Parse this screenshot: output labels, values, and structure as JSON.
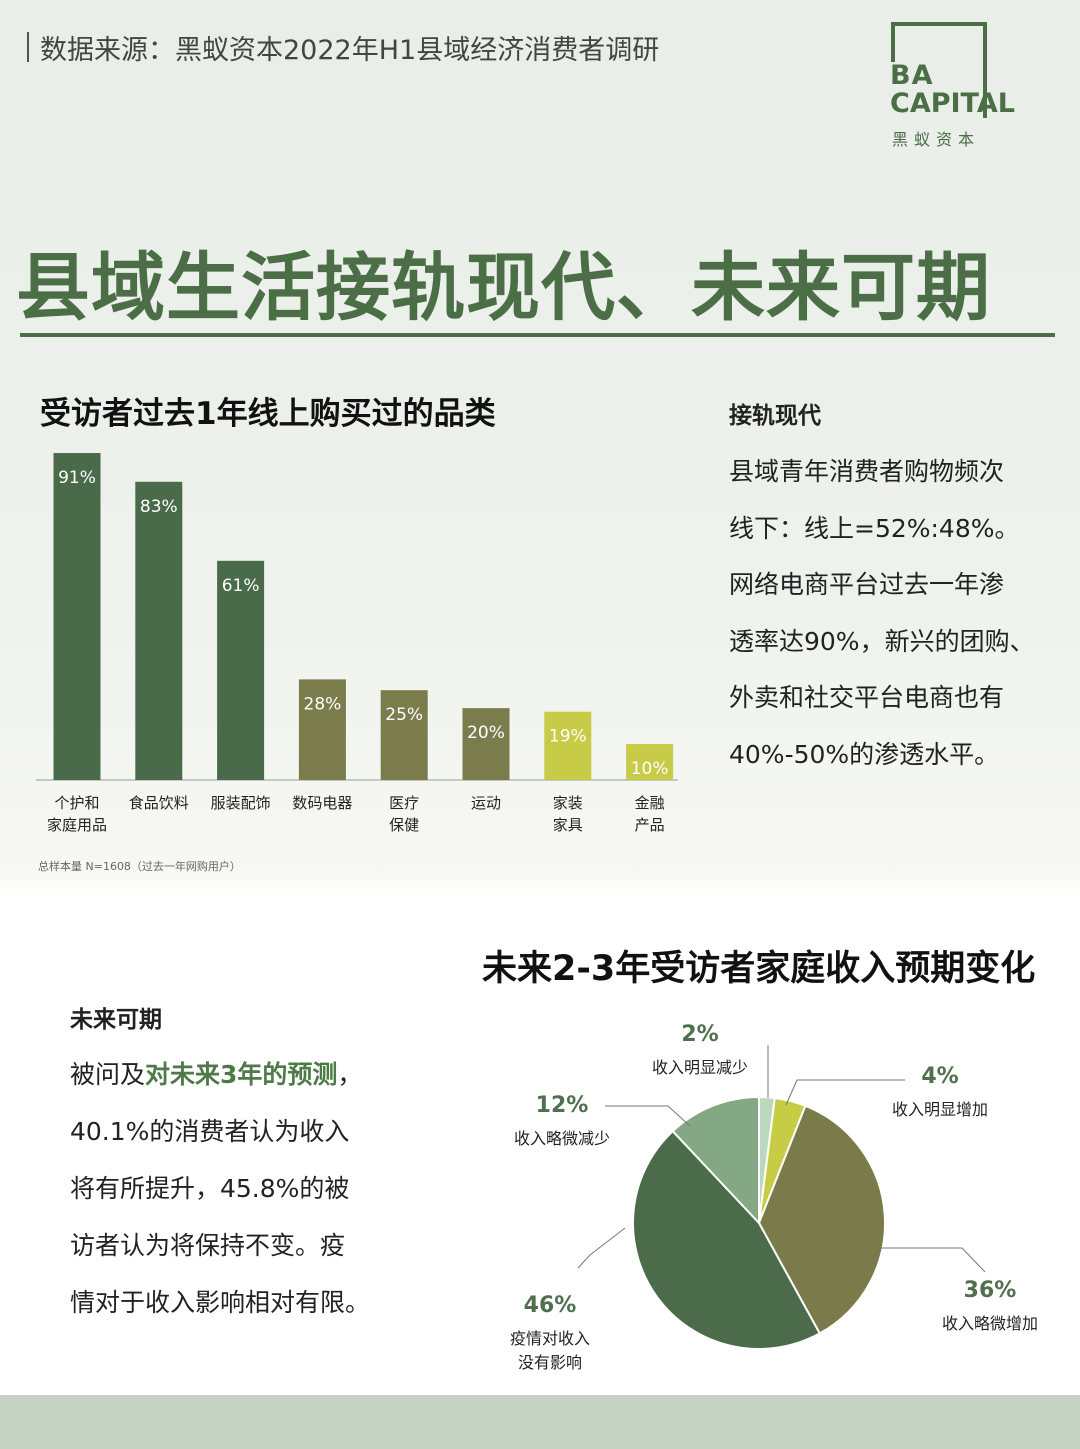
{
  "header": {
    "source": "数据来源：黑蚁资本2022年H1县域经济消费者调研",
    "logo": {
      "line1": "BA",
      "line2": "CAPITAL",
      "cn": "黑蚁资本"
    },
    "title": "县域生活接轨现代、未来可期"
  },
  "chart_data": [
    {
      "type": "bar",
      "title": "受访者过去1年线上购买过的品类",
      "categories": [
        "个护和\n家庭用品",
        "食品饮料",
        "服装配饰",
        "数码电器",
        "医疗\n保健",
        "运动",
        "家装\n家具",
        "金融\n产品"
      ],
      "values": [
        91,
        83,
        61,
        28,
        25,
        20,
        19,
        10
      ],
      "value_labels": [
        "91%",
        "83%",
        "61%",
        "28%",
        "25%",
        "20%",
        "19%",
        "10%"
      ],
      "colors": [
        "#4a6b4a",
        "#4a6b4a",
        "#4a6b4a",
        "#7b7c4c",
        "#7b7c4c",
        "#7b7c4c",
        "#c7cb47",
        "#c7cb47"
      ],
      "note": "总样本量 N=1608（过去一年网购用户）"
    },
    {
      "type": "pie",
      "title": "未来2-3年受访者家庭收入预期变化",
      "categories": [
        "收入明显减少",
        "收入明显增加",
        "收入略微增加",
        "疫情对收入\n没有影响",
        "收入略微减少"
      ],
      "values": [
        2,
        4,
        36,
        46,
        12
      ],
      "value_labels": [
        "2%",
        "4%",
        "36%",
        "46%",
        "12%"
      ],
      "colors": [
        "#bcd8bc",
        "#c6cc44",
        "#7a7a4a",
        "#4b6b4b",
        "#84a884"
      ]
    }
  ],
  "sidebar1": {
    "heading": "接轨现代",
    "lines": [
      "县域青年消费者购物频次",
      "线下：线上=52%:48%。",
      "网络电商平台过去一年渗",
      "透率达90%，新兴的团购、",
      "外卖和社交平台电商也有",
      "40%-50%的渗透水平。"
    ]
  },
  "sidebar2": {
    "heading": "未来可期",
    "lines": [
      [
        "被问及",
        "对未来3年的预测",
        "，"
      ],
      [
        "40.1%的消费者认为收入"
      ],
      [
        "将有所提升，45.8%的被"
      ],
      [
        "访者认为将保持不变。疫"
      ],
      [
        "情对于收入影响相对有限。"
      ]
    ]
  }
}
